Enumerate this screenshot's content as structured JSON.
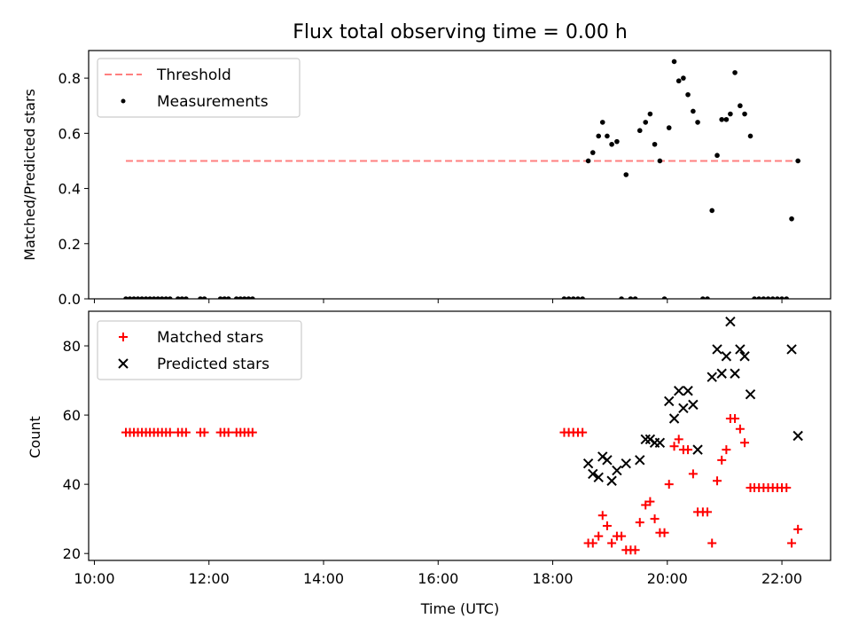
{
  "chart_data": [
    {
      "type": "scatter",
      "title": "Flux total observing time = 0.00 h",
      "xlabel": "",
      "ylabel": "Matched/Predicted stars",
      "x_unit": "hours UTC",
      "xlim": [
        9.9,
        22.85
      ],
      "ylim": [
        0,
        0.9
      ],
      "yticks": [
        "0.0",
        "0.2",
        "0.4",
        "0.6",
        "0.8"
      ],
      "legend_position": "top-left",
      "threshold": {
        "name": "Threshold",
        "value": 0.5,
        "x_range": [
          10.55,
          22.3
        ],
        "color": "#ff7f7f"
      },
      "series": [
        {
          "name": "Measurements",
          "color": "#000000",
          "marker": "dot",
          "points": [
            [
              10.55,
              0
            ],
            [
              10.62,
              0
            ],
            [
              10.69,
              0
            ],
            [
              10.76,
              0
            ],
            [
              10.83,
              0
            ],
            [
              10.9,
              0
            ],
            [
              10.97,
              0
            ],
            [
              11.04,
              0
            ],
            [
              11.11,
              0
            ],
            [
              11.18,
              0
            ],
            [
              11.25,
              0
            ],
            [
              11.32,
              0
            ],
            [
              11.46,
              0
            ],
            [
              11.53,
              0
            ],
            [
              11.6,
              0
            ],
            [
              11.85,
              0
            ],
            [
              11.92,
              0
            ],
            [
              12.2,
              0
            ],
            [
              12.27,
              0
            ],
            [
              12.34,
              0
            ],
            [
              12.48,
              0
            ],
            [
              12.55,
              0
            ],
            [
              12.62,
              0
            ],
            [
              12.69,
              0
            ],
            [
              12.76,
              0
            ],
            [
              18.2,
              0
            ],
            [
              18.28,
              0
            ],
            [
              18.36,
              0
            ],
            [
              18.44,
              0
            ],
            [
              18.52,
              0
            ],
            [
              18.62,
              0.5
            ],
            [
              18.7,
              0.53
            ],
            [
              18.8,
              0.59
            ],
            [
              18.87,
              0.64
            ],
            [
              18.95,
              0.59
            ],
            [
              19.03,
              0.56
            ],
            [
              19.12,
              0.57
            ],
            [
              19.2,
              0
            ],
            [
              19.28,
              0.45
            ],
            [
              19.36,
              0
            ],
            [
              19.44,
              0
            ],
            [
              19.52,
              0.61
            ],
            [
              19.62,
              0.64
            ],
            [
              19.7,
              0.67
            ],
            [
              19.78,
              0.56
            ],
            [
              19.87,
              0.5
            ],
            [
              19.95,
              0
            ],
            [
              20.03,
              0.62
            ],
            [
              20.12,
              0.86
            ],
            [
              20.2,
              0.79
            ],
            [
              20.28,
              0.8
            ],
            [
              20.36,
              0.74
            ],
            [
              20.45,
              0.68
            ],
            [
              20.53,
              0.64
            ],
            [
              20.62,
              0
            ],
            [
              20.7,
              0
            ],
            [
              20.78,
              0.32
            ],
            [
              20.87,
              0.52
            ],
            [
              20.95,
              0.65
            ],
            [
              21.03,
              0.65
            ],
            [
              21.1,
              0.67
            ],
            [
              21.18,
              0.82
            ],
            [
              21.27,
              0.7
            ],
            [
              21.35,
              0.67
            ],
            [
              21.45,
              0.59
            ],
            [
              21.52,
              0
            ],
            [
              21.6,
              0
            ],
            [
              21.68,
              0
            ],
            [
              21.76,
              0
            ],
            [
              21.84,
              0
            ],
            [
              21.92,
              0
            ],
            [
              22.0,
              0
            ],
            [
              22.08,
              0
            ],
            [
              22.17,
              0.29
            ],
            [
              22.28,
              0.5
            ]
          ]
        }
      ]
    },
    {
      "type": "scatter",
      "title": "",
      "xlabel": "Time (UTC)",
      "ylabel": "Count",
      "x_unit": "hours UTC",
      "xlim": [
        9.9,
        22.85
      ],
      "ylim": [
        18,
        90
      ],
      "xticks": [
        {
          "value": 10,
          "label": "10:00"
        },
        {
          "value": 12,
          "label": "12:00"
        },
        {
          "value": 14,
          "label": "14:00"
        },
        {
          "value": 16,
          "label": "16:00"
        },
        {
          "value": 18,
          "label": "18:00"
        },
        {
          "value": 20,
          "label": "20:00"
        },
        {
          "value": 22,
          "label": "22:00"
        }
      ],
      "yticks": [
        "20",
        "40",
        "60",
        "80"
      ],
      "legend_position": "top-left",
      "series": [
        {
          "name": "Matched stars",
          "color": "#ff0000",
          "marker": "plus",
          "points": [
            [
              10.55,
              55
            ],
            [
              10.62,
              55
            ],
            [
              10.69,
              55
            ],
            [
              10.76,
              55
            ],
            [
              10.83,
              55
            ],
            [
              10.9,
              55
            ],
            [
              10.97,
              55
            ],
            [
              11.04,
              55
            ],
            [
              11.11,
              55
            ],
            [
              11.18,
              55
            ],
            [
              11.25,
              55
            ],
            [
              11.32,
              55
            ],
            [
              11.46,
              55
            ],
            [
              11.53,
              55
            ],
            [
              11.6,
              55
            ],
            [
              11.85,
              55
            ],
            [
              11.92,
              55
            ],
            [
              12.2,
              55
            ],
            [
              12.27,
              55
            ],
            [
              12.34,
              55
            ],
            [
              12.48,
              55
            ],
            [
              12.55,
              55
            ],
            [
              12.62,
              55
            ],
            [
              12.69,
              55
            ],
            [
              12.76,
              55
            ],
            [
              18.2,
              55
            ],
            [
              18.28,
              55
            ],
            [
              18.36,
              55
            ],
            [
              18.44,
              55
            ],
            [
              18.52,
              55
            ],
            [
              18.62,
              23
            ],
            [
              18.7,
              23
            ],
            [
              18.8,
              25
            ],
            [
              18.87,
              31
            ],
            [
              18.95,
              28
            ],
            [
              19.03,
              23
            ],
            [
              19.12,
              25
            ],
            [
              19.2,
              25
            ],
            [
              19.28,
              21
            ],
            [
              19.36,
              21
            ],
            [
              19.44,
              21
            ],
            [
              19.52,
              29
            ],
            [
              19.62,
              34
            ],
            [
              19.7,
              35
            ],
            [
              19.78,
              30
            ],
            [
              19.87,
              26
            ],
            [
              19.95,
              26
            ],
            [
              20.03,
              40
            ],
            [
              20.12,
              51
            ],
            [
              20.2,
              53
            ],
            [
              20.28,
              50
            ],
            [
              20.36,
              50
            ],
            [
              20.45,
              43
            ],
            [
              20.53,
              32
            ],
            [
              20.62,
              32
            ],
            [
              20.7,
              32
            ],
            [
              20.78,
              23
            ],
            [
              20.87,
              41
            ],
            [
              20.95,
              47
            ],
            [
              21.03,
              50
            ],
            [
              21.1,
              59
            ],
            [
              21.18,
              59
            ],
            [
              21.27,
              56
            ],
            [
              21.35,
              52
            ],
            [
              21.45,
              39
            ],
            [
              21.52,
              39
            ],
            [
              21.6,
              39
            ],
            [
              21.68,
              39
            ],
            [
              21.76,
              39
            ],
            [
              21.84,
              39
            ],
            [
              21.92,
              39
            ],
            [
              22.0,
              39
            ],
            [
              22.08,
              39
            ],
            [
              22.17,
              23
            ],
            [
              22.28,
              27
            ]
          ]
        },
        {
          "name": "Predicted stars",
          "color": "#000000",
          "marker": "x",
          "points": [
            [
              18.62,
              46
            ],
            [
              18.7,
              43
            ],
            [
              18.8,
              42
            ],
            [
              18.87,
              48
            ],
            [
              18.95,
              47
            ],
            [
              19.03,
              41
            ],
            [
              19.12,
              44
            ],
            [
              19.28,
              46
            ],
            [
              19.52,
              47
            ],
            [
              19.62,
              53
            ],
            [
              19.7,
              53
            ],
            [
              19.78,
              52
            ],
            [
              19.87,
              52
            ],
            [
              20.03,
              64
            ],
            [
              20.12,
              59
            ],
            [
              20.2,
              67
            ],
            [
              20.28,
              62
            ],
            [
              20.36,
              67
            ],
            [
              20.45,
              63
            ],
            [
              20.53,
              50
            ],
            [
              20.78,
              71
            ],
            [
              20.87,
              79
            ],
            [
              20.95,
              72
            ],
            [
              21.03,
              77
            ],
            [
              21.1,
              87
            ],
            [
              21.18,
              72
            ],
            [
              21.27,
              79
            ],
            [
              21.35,
              77
            ],
            [
              21.45,
              66
            ],
            [
              22.17,
              79
            ],
            [
              22.28,
              54
            ]
          ]
        }
      ]
    }
  ]
}
